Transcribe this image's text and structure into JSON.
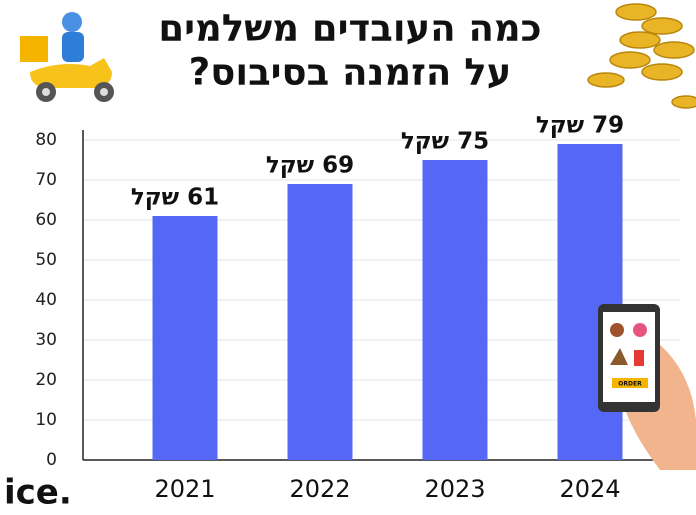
{
  "chart_data": {
    "type": "bar",
    "title": "כמה העובדים משלמים",
    "subtitle": "על הזמנה בסיבוס?",
    "categories": [
      "2021",
      "2022",
      "2023",
      "2024"
    ],
    "values": [
      61,
      69,
      75,
      79
    ],
    "value_labels": [
      "61 שקל",
      "69 שקל",
      "75 שקל",
      "79 שקל"
    ],
    "color": "#5468f5",
    "ylim": [
      0,
      80
    ],
    "yticks": [
      0,
      10,
      20,
      30,
      40,
      50,
      60,
      70,
      80
    ],
    "grid": true
  },
  "logo": "ice.",
  "decor": {
    "order_label": "ORDER"
  }
}
